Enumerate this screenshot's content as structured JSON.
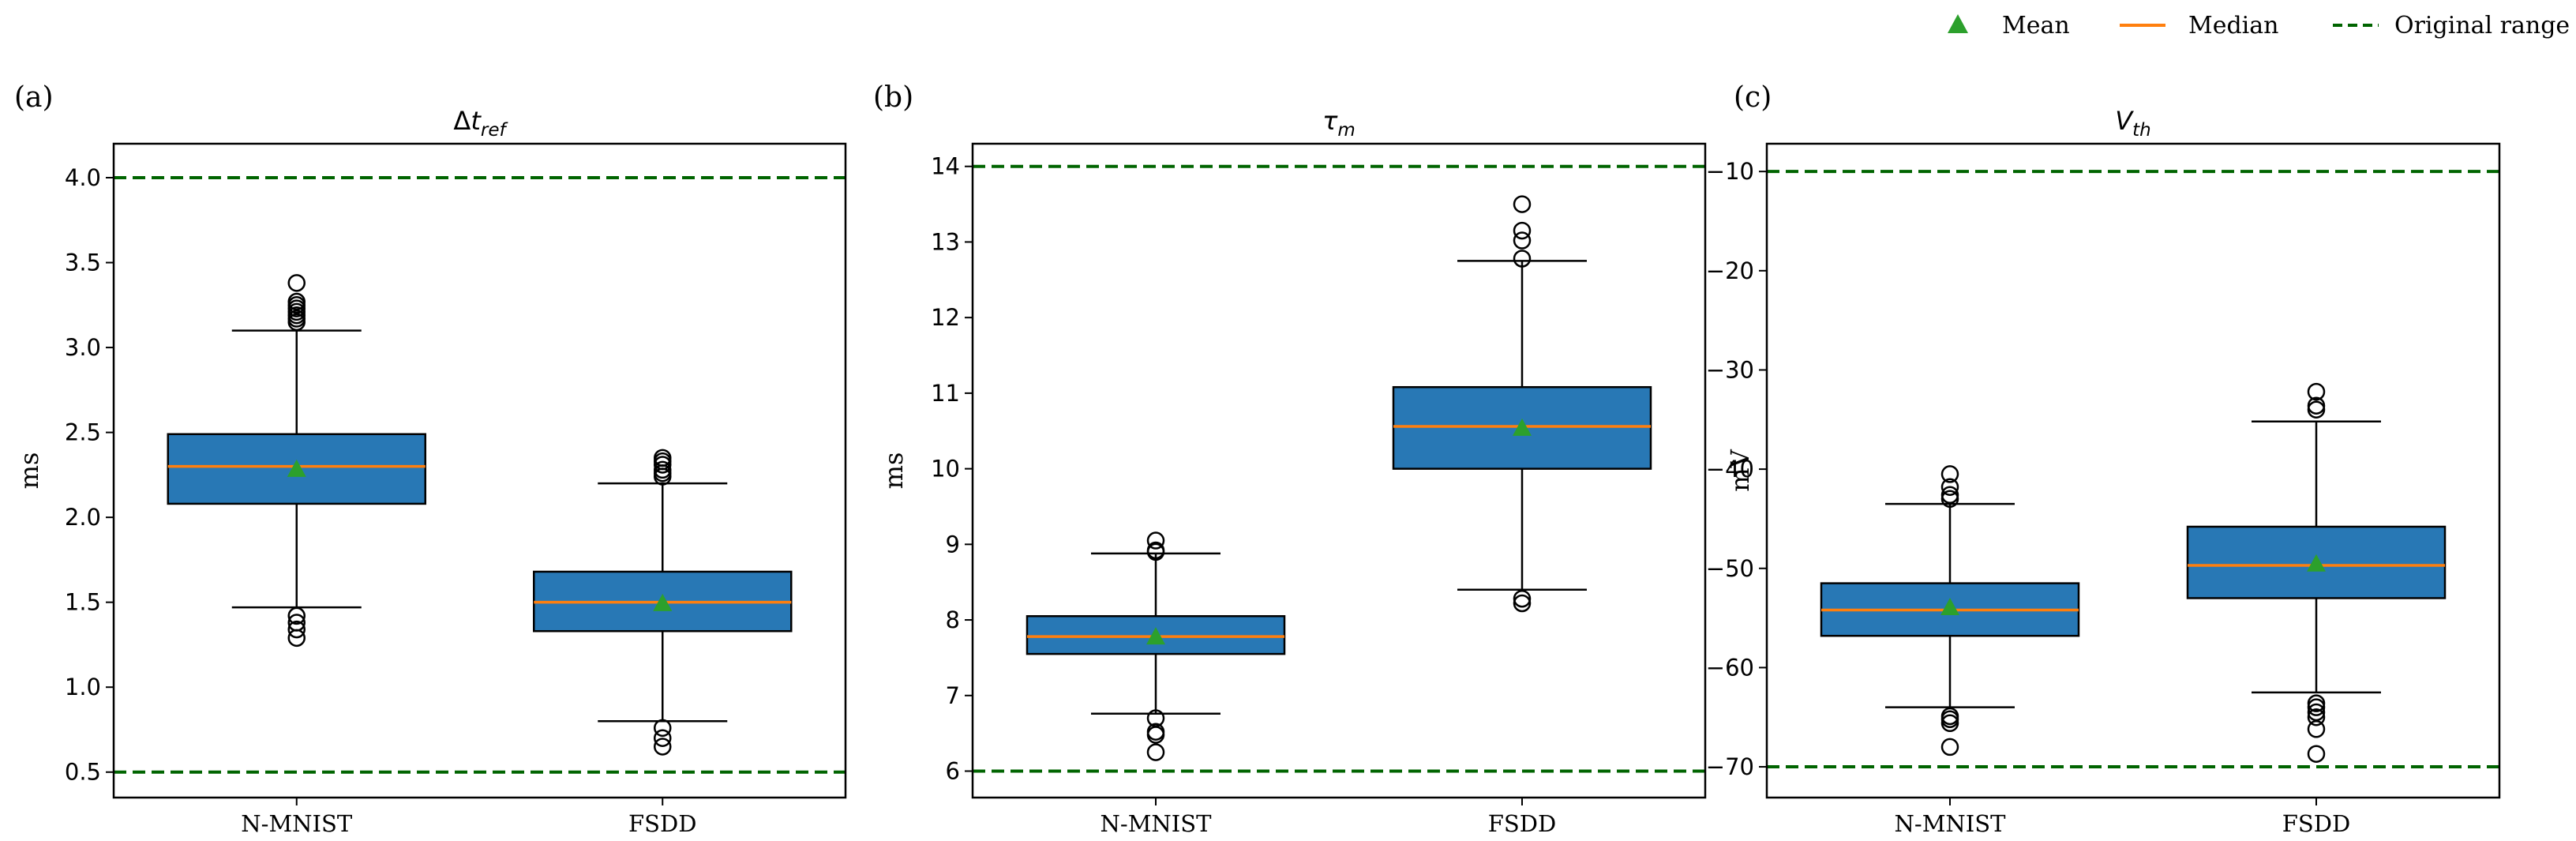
{
  "legend": {
    "position": "top-right",
    "entries": [
      {
        "label": "Mean",
        "marker": "triangle",
        "color": "#2ca02c"
      },
      {
        "label": "Median",
        "marker": "line",
        "color": "#ff7f0e"
      },
      {
        "label": "Original range",
        "marker": "dashed-line",
        "color": "#006400"
      }
    ]
  },
  "colors": {
    "box_fill": "#2878b5",
    "median": "#ff7f0e",
    "mean": "#2ca02c",
    "range": "#006400"
  },
  "chart_data": [
    {
      "type": "boxplot",
      "panel": "(a)",
      "title": "Δt",
      "title_sub": "ref",
      "ylabel": "ms",
      "ylim": [
        0.35,
        4.2
      ],
      "yticks": [
        0.5,
        1.0,
        1.5,
        2.0,
        2.5,
        3.0,
        3.5,
        4.0
      ],
      "ytick_labels": [
        "0.5",
        "1.0",
        "1.5",
        "2.0",
        "2.5",
        "3.0",
        "3.5",
        "4.0"
      ],
      "original_range": [
        0.5,
        4.0
      ],
      "categories": [
        "N-MNIST",
        "FSDD"
      ],
      "boxes": [
        {
          "whisker_low": 1.47,
          "q1": 2.08,
          "median": 2.3,
          "q3": 2.49,
          "whisker_high": 3.1,
          "mean": 2.28,
          "outliers": [
            1.29,
            1.34,
            1.38,
            1.42,
            3.15,
            3.17,
            3.19,
            3.21,
            3.23,
            3.25,
            3.27,
            3.38
          ]
        },
        {
          "whisker_low": 0.8,
          "q1": 1.33,
          "median": 1.5,
          "q3": 1.68,
          "whisker_high": 2.2,
          "mean": 1.49,
          "outliers": [
            0.65,
            0.7,
            0.76,
            2.24,
            2.26,
            2.28,
            2.31,
            2.33,
            2.35
          ]
        }
      ]
    },
    {
      "type": "boxplot",
      "panel": "(b)",
      "title": "τ",
      "title_sub": "m",
      "ylabel": "ms",
      "ylim": [
        5.65,
        14.3
      ],
      "yticks": [
        6,
        7,
        8,
        9,
        10,
        11,
        12,
        13,
        14
      ],
      "ytick_labels": [
        "6",
        "7",
        "8",
        "9",
        "10",
        "11",
        "12",
        "13",
        "14"
      ],
      "original_range": [
        6,
        14
      ],
      "categories": [
        "N-MNIST",
        "FSDD"
      ],
      "boxes": [
        {
          "whisker_low": 6.76,
          "q1": 7.55,
          "median": 7.78,
          "q3": 8.05,
          "whisker_high": 8.88,
          "mean": 7.77,
          "outliers": [
            6.25,
            6.48,
            6.52,
            6.7,
            8.9,
            8.92,
            9.05
          ]
        },
        {
          "whisker_low": 8.4,
          "q1": 10.0,
          "median": 10.56,
          "q3": 11.08,
          "whisker_high": 12.75,
          "mean": 10.53,
          "outliers": [
            8.22,
            8.28,
            12.78,
            13.02,
            13.15,
            13.5
          ]
        }
      ]
    },
    {
      "type": "boxplot",
      "panel": "(c)",
      "title": "V",
      "title_sub": "th",
      "ylabel": "mV",
      "ylim": [
        -73.1,
        -7.2
      ],
      "yticks": [
        -70,
        -60,
        -50,
        -40,
        -30,
        -20,
        -10
      ],
      "ytick_labels": [
        "−70",
        "−60",
        "−50",
        "−40",
        "−30",
        "−20",
        "−10"
      ],
      "original_range": [
        -70,
        -10
      ],
      "categories": [
        "N-MNIST",
        "FSDD"
      ],
      "boxes": [
        {
          "whisker_low": -64.0,
          "q1": -56.8,
          "median": -54.2,
          "q3": -51.5,
          "whisker_high": -43.5,
          "mean": -54.0,
          "outliers": [
            -68.0,
            -65.6,
            -65.2,
            -64.9,
            -43.0,
            -42.6,
            -41.8,
            -40.5
          ]
        },
        {
          "whisker_low": -62.5,
          "q1": -53.0,
          "median": -49.7,
          "q3": -45.8,
          "whisker_high": -35.2,
          "mean": -49.6,
          "outliers": [
            -68.7,
            -66.2,
            -65.0,
            -64.5,
            -64.0,
            -63.6,
            -34.0,
            -33.6,
            -32.2
          ]
        }
      ]
    }
  ]
}
